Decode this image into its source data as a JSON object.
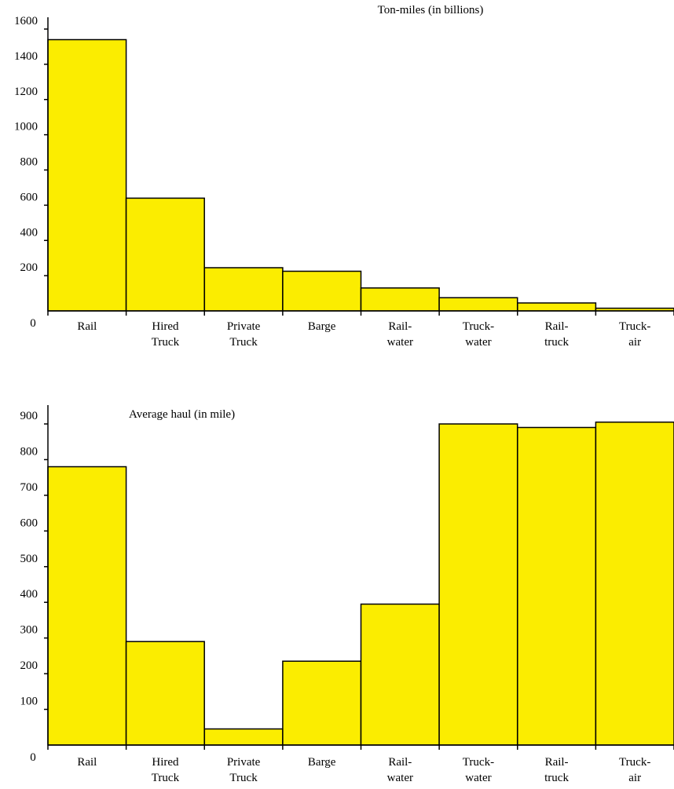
{
  "bar_color": "#fbed00",
  "outline_color": "#000000",
  "chart_data": [
    {
      "type": "bar",
      "title": "Ton-miles (in billions)",
      "xlabel": "",
      "ylabel": "",
      "ylim": [
        0,
        1600
      ],
      "yticks": [
        200,
        400,
        600,
        800,
        1000,
        1200,
        1400,
        1600
      ],
      "zero_label": "0",
      "grid": false,
      "legend": "none",
      "categories": [
        [
          "Rail"
        ],
        [
          "Hired",
          "Truck"
        ],
        [
          "Private",
          "Truck"
        ],
        [
          "Barge"
        ],
        [
          "Rail-",
          "water"
        ],
        [
          "Truck-",
          "water"
        ],
        [
          "Rail-",
          "truck"
        ],
        [
          "Truck-",
          "air"
        ]
      ],
      "values": [
        1540,
        640,
        245,
        225,
        130,
        75,
        45,
        15
      ]
    },
    {
      "type": "bar",
      "title": "Average haul (in mile)",
      "xlabel": "",
      "ylabel": "",
      "ylim": [
        0,
        900
      ],
      "yticks": [
        100,
        200,
        300,
        400,
        500,
        600,
        700,
        800,
        900
      ],
      "zero_label": "0",
      "grid": false,
      "legend": "none",
      "categories": [
        [
          "Rail"
        ],
        [
          "Hired",
          "Truck"
        ],
        [
          "Private",
          "Truck"
        ],
        [
          "Barge"
        ],
        [
          "Rail-",
          "water"
        ],
        [
          "Truck-",
          "water"
        ],
        [
          "Rail-",
          "truck"
        ],
        [
          "Truck-",
          "air"
        ]
      ],
      "values": [
        780,
        290,
        45,
        235,
        395,
        900,
        890,
        905
      ]
    }
  ]
}
